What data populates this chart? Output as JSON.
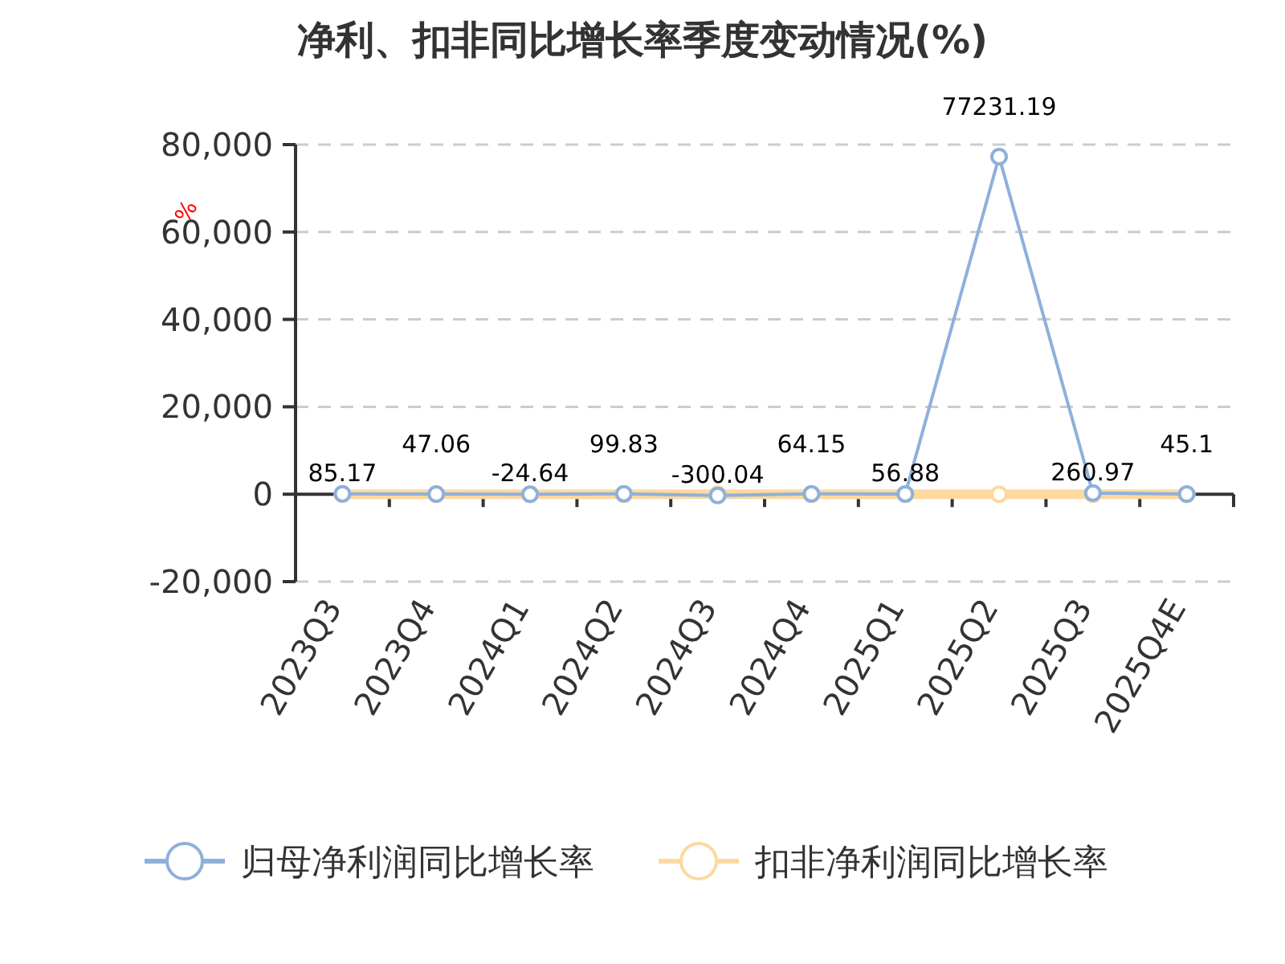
{
  "chart_data": {
    "type": "line",
    "title": "净利、扣非同比增长率季度变动情况(%)",
    "ylabel": "%",
    "categories": [
      "2023Q3",
      "2023Q4",
      "2024Q1",
      "2024Q2",
      "2024Q3",
      "2024Q4",
      "2025Q1",
      "2025Q2",
      "2025Q3",
      "2025Q4E"
    ],
    "series": [
      {
        "name": "归母净利润同比增长率",
        "color": "#8eb0dc",
        "values": [
          85.17,
          47.06,
          -24.64,
          99.83,
          -300.04,
          64.15,
          56.88,
          77231.19,
          260.97,
          45.1
        ],
        "value_labels": [
          "85.17",
          "47.06",
          "-24.64",
          "99.83",
          "-300.04",
          "64.15",
          "56.88",
          "77231.19",
          "260.97",
          "45.1"
        ]
      },
      {
        "name": "扣非净利润同比增长率",
        "color": "#fdd9a0",
        "values": [
          0,
          0,
          0,
          0,
          0,
          0,
          0,
          0,
          0,
          0
        ]
      }
    ],
    "ylim": [
      -20000,
      80000
    ],
    "yticks": [
      {
        "value": -20000,
        "label": "-20,000"
      },
      0,
      {
        "value": 20000,
        "label": "20,000"
      },
      {
        "value": 40000,
        "label": "40,000"
      },
      {
        "value": 60000,
        "label": "60,000"
      },
      {
        "value": 80000,
        "label": "80,000"
      }
    ],
    "grid": "y",
    "legend": "bottom",
    "marker": "circle",
    "line_style": "solid"
  }
}
